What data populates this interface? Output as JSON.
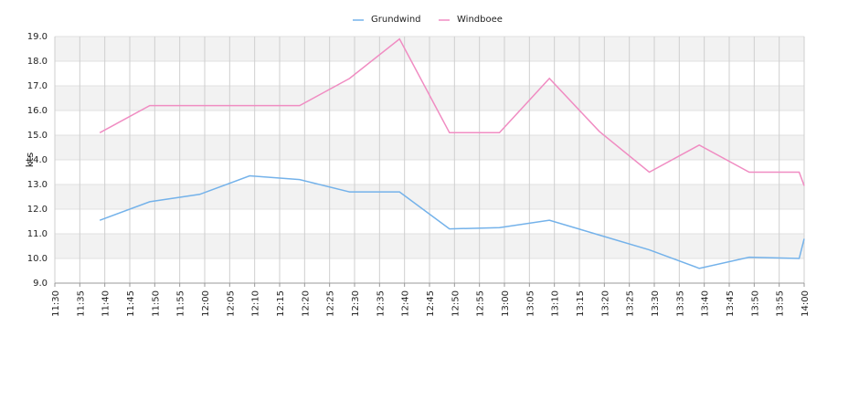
{
  "chart_data": {
    "type": "line",
    "ylabel": "kts",
    "x": [
      "11:39",
      "11:49",
      "11:59",
      "12:09",
      "12:19",
      "12:29",
      "12:39",
      "12:49",
      "12:59",
      "13:09",
      "13:19",
      "13:29",
      "13:39",
      "13:49",
      "13:59",
      "14:00"
    ],
    "series": [
      {
        "name": "Grundwind",
        "color": "#74b2ea",
        "values": [
          11.55,
          12.3,
          12.6,
          13.35,
          13.2,
          12.7,
          12.7,
          11.2,
          11.25,
          11.55,
          10.95,
          10.35,
          9.6,
          10.05,
          10.0,
          10.8
        ]
      },
      {
        "name": "Windboee",
        "color": "#f08cc2",
        "values": [
          15.1,
          16.2,
          16.2,
          16.2,
          16.2,
          17.3,
          18.9,
          15.1,
          15.1,
          17.3,
          15.15,
          13.5,
          14.6,
          13.5,
          13.5,
          12.95
        ]
      }
    ],
    "xlim": [
      "11:30",
      "14:00"
    ],
    "xticks": [
      "11:30",
      "11:35",
      "11:40",
      "11:45",
      "11:50",
      "11:55",
      "12:00",
      "12:05",
      "12:10",
      "12:15",
      "12:20",
      "12:25",
      "12:30",
      "12:35",
      "12:40",
      "12:45",
      "12:50",
      "12:55",
      "13:00",
      "13:05",
      "13:10",
      "13:15",
      "13:20",
      "13:25",
      "13:30",
      "13:35",
      "13:40",
      "13:45",
      "13:50",
      "13:55",
      "14:00"
    ],
    "ylim": [
      9,
      19
    ],
    "yticks": [
      {
        "value": 9,
        "label": "9.0"
      },
      {
        "value": 10,
        "label": "10.0"
      },
      {
        "value": 11,
        "label": "11.0"
      },
      {
        "value": 12,
        "label": "12.0"
      },
      {
        "value": 13,
        "label": "13.0"
      },
      {
        "value": 14,
        "label": "14.0"
      },
      {
        "value": 15,
        "label": "15.0"
      },
      {
        "value": 16,
        "label": "16.0"
      },
      {
        "value": 17,
        "label": "17.0"
      },
      {
        "value": 18,
        "label": "18.0"
      },
      {
        "value": 19,
        "label": "19.0"
      }
    ],
    "grid": true,
    "legend": "top"
  }
}
